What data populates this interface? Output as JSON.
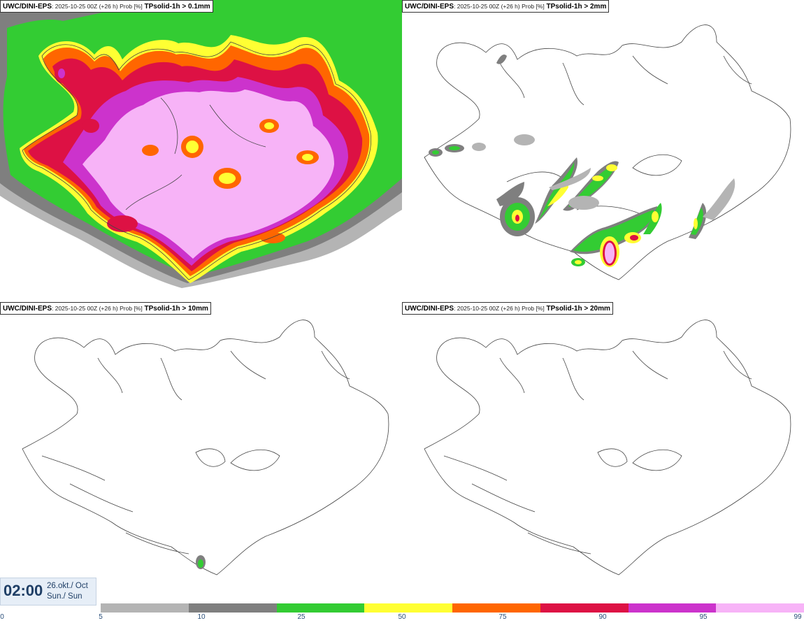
{
  "panels": [
    {
      "model": "UWC/DINI-EPS",
      "meta": ": 2025-10-25 00Z (+26 h) Prob [%]",
      "param": "TPsolid-1h > 0.1mm"
    },
    {
      "model": "UWC/DINI-EPS",
      "meta": ": 2025-10-25 00Z (+26 h) Prob [%]",
      "param": "TPsolid-1h > 2mm"
    },
    {
      "model": "UWC/DINI-EPS",
      "meta": ": 2025-10-25 00Z (+26 h) Prob [%]",
      "param": "TPsolid-1h > 10mm"
    },
    {
      "model": "UWC/DINI-EPS",
      "meta": ": 2025-10-25 00Z (+26 h) Prob [%]",
      "param": "TPsolid-1h > 20mm"
    }
  ],
  "valid_time": {
    "time": "02:00",
    "date": "26.okt./ Oct",
    "day": "Sun./ Sun"
  },
  "legend": {
    "ticks": [
      "0",
      "5",
      "10",
      "25",
      "50",
      "75",
      "90",
      "95",
      "99"
    ],
    "colors": [
      "#b4b4b4",
      "#7f7f7f",
      "#33cc33",
      "#ffff33",
      "#ff6600",
      "#dd1144",
      "#cc33cc",
      "#f7b3f7"
    ]
  },
  "colors": {
    "grey_light": "#b4b4b4",
    "grey_dark": "#7f7f7f",
    "green": "#33cc33",
    "yellow": "#ffff33",
    "orange": "#ff6600",
    "red": "#dd1144",
    "magenta": "#cc33cc",
    "pink": "#f7b3f7"
  }
}
